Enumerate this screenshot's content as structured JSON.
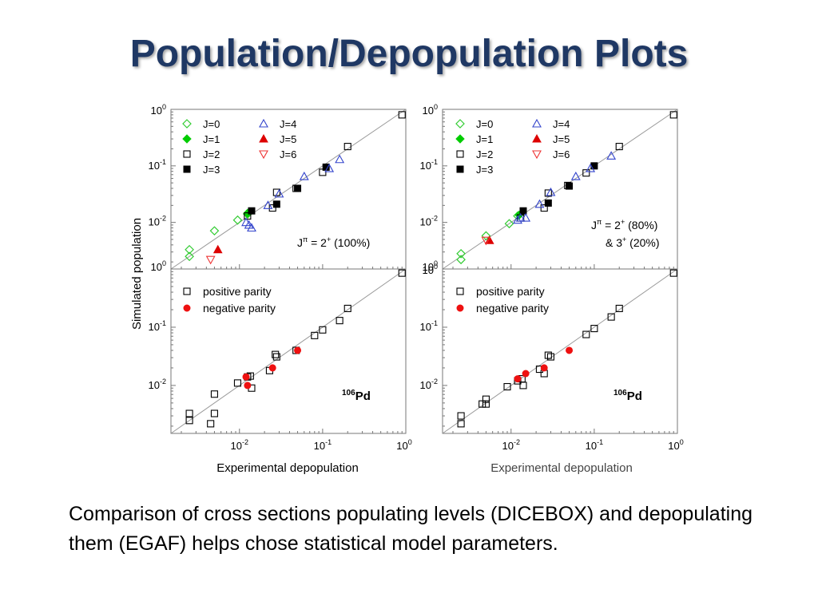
{
  "slide": {
    "title": "Population/Depopulation Plots",
    "caption": "Comparison of cross sections populating levels (DICEBOX) and depopulating them (EGAF) helps chose statistical model parameters."
  },
  "figure": {
    "y_axis_label": "Simulated population",
    "x_axis_label": "Experimental depopulation",
    "isotope": "106Pd",
    "isotope_mass": "106",
    "isotope_symbol": "Pd",
    "tick_labels": [
      "10^-2",
      "10^-1",
      "10^0"
    ]
  },
  "colors": {
    "title": "#1f3864",
    "J0": "#33cc33",
    "J1": "#00cc00",
    "J2": "#000000",
    "J3": "#000000",
    "J4": "#3344cc",
    "J5": "#dd0000",
    "J6": "#ee3333",
    "positive": "#000000",
    "negative": "#ee1111",
    "diagonal": "#999999"
  },
  "chart_data": [
    {
      "id": "left-top",
      "type": "scatter",
      "log_scale": true,
      "xlim": [
        0.0015,
        1.0
      ],
      "ylim": [
        0.0015,
        1.0
      ],
      "y_tick_labels": [
        "10^0",
        "10^-1",
        "10^-2",
        "10^0"
      ],
      "legend": [
        {
          "label": "J=0",
          "key": "J0"
        },
        {
          "label": "J=1",
          "key": "J1"
        },
        {
          "label": "J=2",
          "key": "J2"
        },
        {
          "label": "J=3",
          "key": "J3"
        },
        {
          "label": "J=4",
          "key": "J4"
        },
        {
          "label": "J=5",
          "key": "J5"
        },
        {
          "label": "J=6",
          "key": "J6"
        }
      ],
      "annotation": "Jπ = 2+ (100%)",
      "annotation_lines": [
        {
          "base": "J",
          "sup": "π",
          "rest": " = 2",
          "sup2": "+",
          "tail": " (100%)"
        }
      ],
      "series": [
        {
          "key": "J0",
          "points": [
            [
              0.0025,
              0.0033
            ],
            [
              0.0025,
              0.0025
            ],
            [
              0.005,
              0.0071
            ],
            [
              0.0095,
              0.011
            ],
            [
              0.0125,
              0.014
            ]
          ]
        },
        {
          "key": "J1",
          "points": [
            [
              0.0125,
              0.0145
            ]
          ]
        },
        {
          "key": "J2",
          "points": [
            [
              0.0125,
              0.013
            ],
            [
              0.025,
              0.018
            ],
            [
              0.028,
              0.034
            ],
            [
              0.048,
              0.04
            ],
            [
              0.1,
              0.077
            ],
            [
              0.2,
              0.22
            ],
            [
              0.9,
              0.8
            ]
          ]
        },
        {
          "key": "J3",
          "points": [
            [
              0.014,
              0.016
            ],
            [
              0.028,
              0.021
            ],
            [
              0.05,
              0.04
            ],
            [
              0.11,
              0.095
            ]
          ]
        },
        {
          "key": "J4",
          "points": [
            [
              0.012,
              0.01
            ],
            [
              0.013,
              0.009
            ],
            [
              0.014,
              0.008
            ],
            [
              0.022,
              0.02
            ],
            [
              0.03,
              0.032
            ],
            [
              0.06,
              0.065
            ],
            [
              0.12,
              0.09
            ],
            [
              0.16,
              0.13
            ]
          ]
        },
        {
          "key": "J5",
          "points": [
            [
              0.0055,
              0.0033
            ]
          ]
        },
        {
          "key": "J6",
          "points": [
            [
              0.0045,
              0.0022
            ]
          ]
        }
      ]
    },
    {
      "id": "right-top",
      "type": "scatter",
      "log_scale": true,
      "xlim": [
        0.0015,
        1.0
      ],
      "ylim": [
        0.0015,
        1.0
      ],
      "y_tick_labels": [
        "10^0",
        "10^-1",
        "10^-2",
        "10^0"
      ],
      "legend": [
        {
          "label": "J=0",
          "key": "J0"
        },
        {
          "label": "J=1",
          "key": "J1"
        },
        {
          "label": "J=2",
          "key": "J2"
        },
        {
          "label": "J=3",
          "key": "J3"
        },
        {
          "label": "J=4",
          "key": "J4"
        },
        {
          "label": "J=5",
          "key": "J5"
        },
        {
          "label": "J=6",
          "key": "J6"
        }
      ],
      "annotation": "Jπ = 2+ (80%) & 3+ (20%)",
      "annotation_lines": [
        {
          "base": "J",
          "sup": "π",
          "rest": " = 2",
          "sup2": "+",
          "tail": " (80%)"
        },
        {
          "base": "& 3",
          "sup": "+",
          "rest": " (20%)",
          "sup2": "",
          "tail": ""
        }
      ],
      "series": [
        {
          "key": "J0",
          "points": [
            [
              0.0025,
              0.0028
            ],
            [
              0.0025,
              0.0022
            ],
            [
              0.005,
              0.0058
            ],
            [
              0.0095,
              0.0095
            ],
            [
              0.012,
              0.013
            ]
          ]
        },
        {
          "key": "J1",
          "points": [
            [
              0.0125,
              0.0135
            ]
          ]
        },
        {
          "key": "J2",
          "points": [
            [
              0.013,
              0.012
            ],
            [
              0.025,
              0.018
            ],
            [
              0.028,
              0.033
            ],
            [
              0.048,
              0.045
            ],
            [
              0.08,
              0.075
            ],
            [
              0.2,
              0.22
            ],
            [
              0.9,
              0.8
            ]
          ]
        },
        {
          "key": "J3",
          "points": [
            [
              0.014,
              0.016
            ],
            [
              0.028,
              0.022
            ],
            [
              0.05,
              0.044
            ],
            [
              0.1,
              0.1
            ]
          ]
        },
        {
          "key": "J4",
          "points": [
            [
              0.012,
              0.011
            ],
            [
              0.013,
              0.012
            ],
            [
              0.015,
              0.012
            ],
            [
              0.022,
              0.021
            ],
            [
              0.03,
              0.034
            ],
            [
              0.06,
              0.065
            ],
            [
              0.09,
              0.09
            ],
            [
              0.16,
              0.15
            ]
          ]
        },
        {
          "key": "J5",
          "points": [
            [
              0.0055,
              0.0048
            ]
          ]
        },
        {
          "key": "J6",
          "points": [
            [
              0.005,
              0.0048
            ]
          ]
        }
      ]
    },
    {
      "id": "left-bottom",
      "type": "scatter",
      "log_scale": true,
      "xlim": [
        0.0015,
        1.0
      ],
      "ylim": [
        0.0015,
        1.0
      ],
      "y_tick_labels": [
        "10^-1",
        "10^-2"
      ],
      "x_tick_labels": [
        "10^-2",
        "10^-1",
        "10^0"
      ],
      "legend": [
        {
          "label": "positive parity",
          "key": "positive"
        },
        {
          "label": "negative parity",
          "key": "negative"
        }
      ],
      "series": [
        {
          "key": "positive",
          "points": [
            [
              0.0025,
              0.0033
            ],
            [
              0.0025,
              0.0025
            ],
            [
              0.005,
              0.0033
            ],
            [
              0.0045,
              0.0022
            ],
            [
              0.005,
              0.0071
            ],
            [
              0.0095,
              0.011
            ],
            [
              0.0125,
              0.014
            ],
            [
              0.0135,
              0.0145
            ],
            [
              0.014,
              0.009
            ],
            [
              0.023,
              0.018
            ],
            [
              0.027,
              0.034
            ],
            [
              0.028,
              0.031
            ],
            [
              0.048,
              0.04
            ],
            [
              0.08,
              0.072
            ],
            [
              0.1,
              0.09
            ],
            [
              0.16,
              0.13
            ],
            [
              0.2,
              0.21
            ],
            [
              0.9,
              0.85
            ]
          ]
        },
        {
          "key": "negative",
          "points": [
            [
              0.012,
              0.014
            ],
            [
              0.0125,
              0.01
            ],
            [
              0.025,
              0.02
            ],
            [
              0.05,
              0.04
            ]
          ]
        }
      ]
    },
    {
      "id": "right-bottom",
      "type": "scatter",
      "log_scale": true,
      "xlim": [
        0.0015,
        1.0
      ],
      "ylim": [
        0.0015,
        1.0
      ],
      "y_tick_labels": [
        "10^0",
        "10^-1",
        "10^-2"
      ],
      "x_tick_labels": [
        "10^-2",
        "10^-1",
        "10^0"
      ],
      "legend": [
        {
          "label": "positive parity",
          "key": "positive"
        },
        {
          "label": "negative parity",
          "key": "negative"
        }
      ],
      "series": [
        {
          "key": "positive",
          "points": [
            [
              0.0025,
              0.003
            ],
            [
              0.0025,
              0.0022
            ],
            [
              0.005,
              0.0058
            ],
            [
              0.005,
              0.0048
            ],
            [
              0.0045,
              0.0048
            ],
            [
              0.009,
              0.0095
            ],
            [
              0.012,
              0.012
            ],
            [
              0.0135,
              0.013
            ],
            [
              0.014,
              0.01
            ],
            [
              0.022,
              0.019
            ],
            [
              0.025,
              0.016
            ],
            [
              0.028,
              0.033
            ],
            [
              0.03,
              0.031
            ],
            [
              0.08,
              0.075
            ],
            [
              0.1,
              0.095
            ],
            [
              0.16,
              0.15
            ],
            [
              0.2,
              0.21
            ],
            [
              0.9,
              0.85
            ]
          ]
        },
        {
          "key": "negative",
          "points": [
            [
              0.012,
              0.013
            ],
            [
              0.015,
              0.016
            ],
            [
              0.025,
              0.02
            ],
            [
              0.05,
              0.04
            ]
          ]
        }
      ]
    }
  ]
}
